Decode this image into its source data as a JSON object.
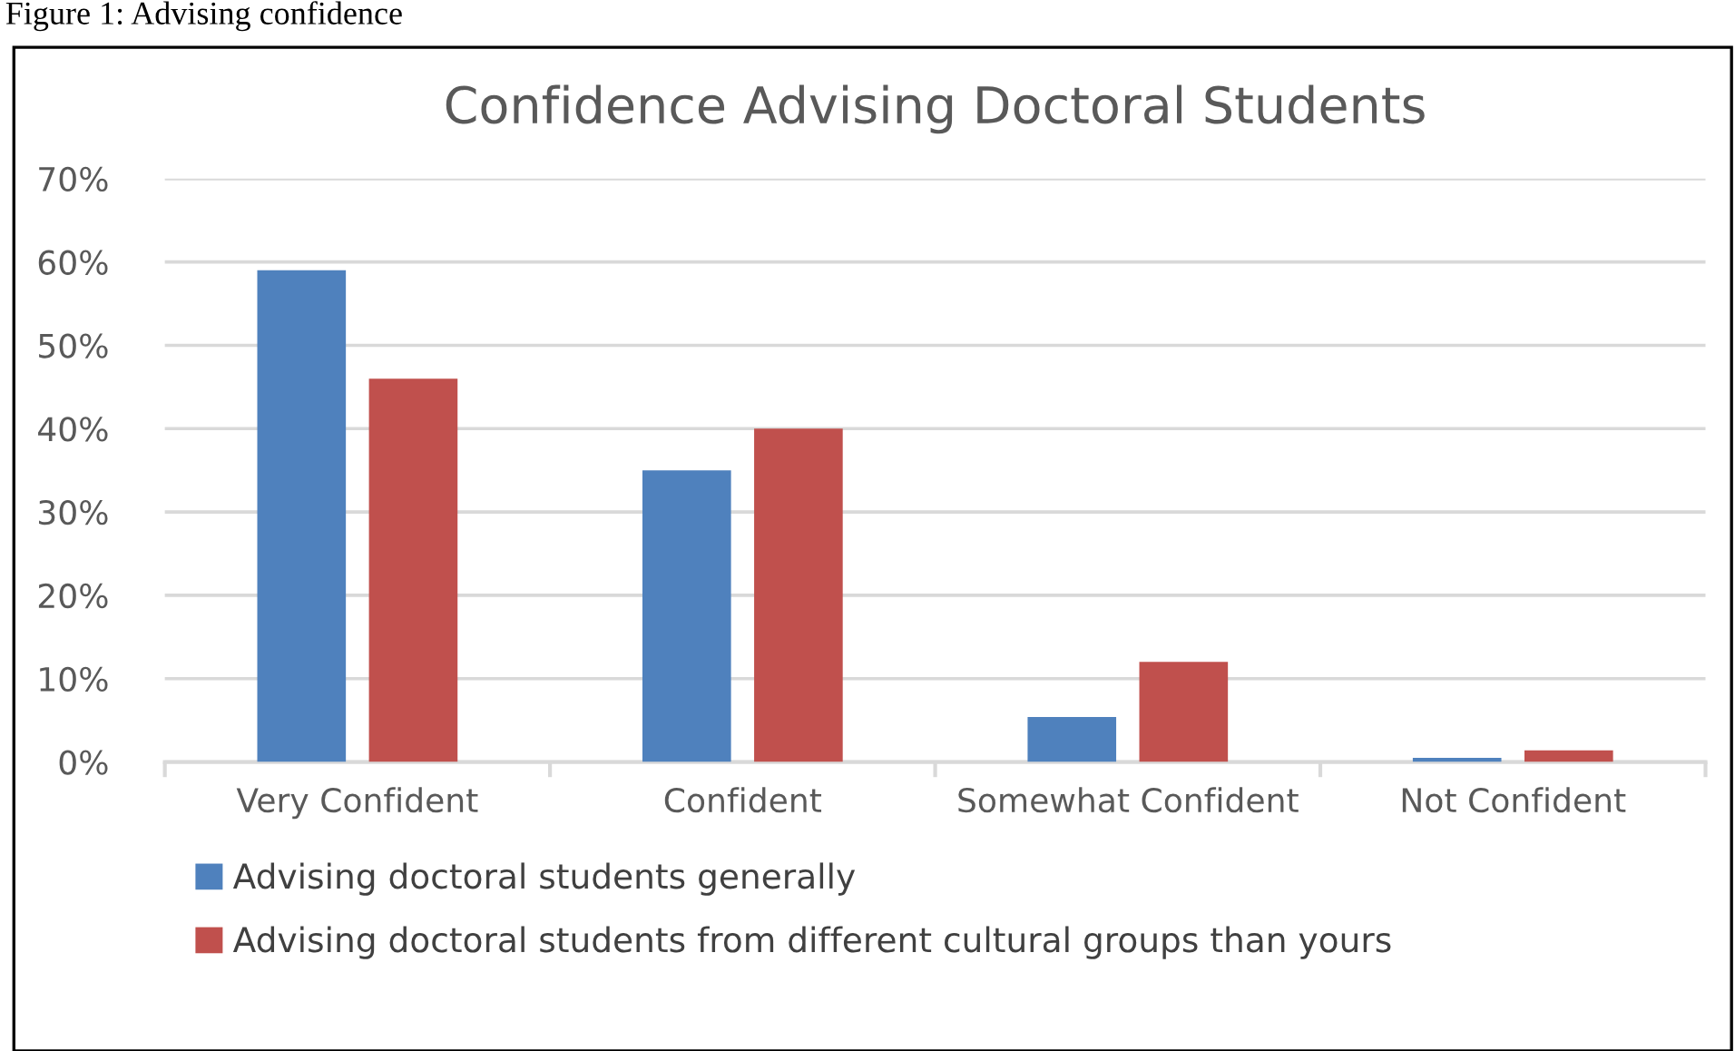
{
  "chart_data": {
    "type": "bar",
    "title": "Confidence Advising Doctoral Students",
    "annotations": [
      "Figure 1: Advising confidence"
    ],
    "categories": [
      "Very Confident",
      "Confident",
      "Somewhat Confident",
      "Not Confident"
    ],
    "series": [
      {
        "name": "Advising doctoral students generally",
        "color": "#4f81bd",
        "values": [
          59,
          35,
          5.4,
          0.5
        ]
      },
      {
        "name": "Advising doctoral students from different cultural groups than yours",
        "color": "#c0504d",
        "values": [
          46,
          40,
          12,
          1.4
        ]
      }
    ],
    "ylim": [
      0,
      70
    ],
    "yticks": [
      {
        "value": 0,
        "label": "0%"
      },
      {
        "value": 10,
        "label": "10%"
      },
      {
        "value": 20,
        "label": "20%"
      },
      {
        "value": 30,
        "label": "30%"
      },
      {
        "value": 40,
        "label": "40%"
      },
      {
        "value": 50,
        "label": "50%"
      },
      {
        "value": 60,
        "label": "60%"
      },
      {
        "value": 70,
        "label": "70%"
      }
    ],
    "grid": "y",
    "legend": "bottom"
  }
}
